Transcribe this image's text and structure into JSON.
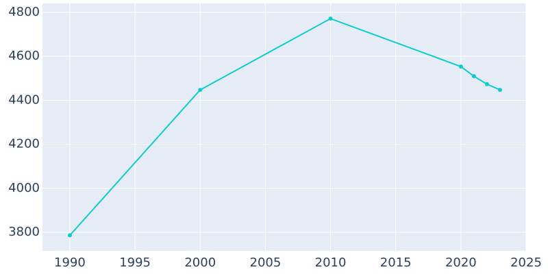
{
  "chart_data": {
    "type": "line",
    "x": [
      1990,
      2000,
      2010,
      2020,
      2021,
      2022,
      2023
    ],
    "series": [
      {
        "color": "#0fcccc",
        "values": [
          3786,
          4447,
          4771,
          4553,
          4509,
          4473,
          4447
        ]
      }
    ],
    "xlim": [
      1987.9,
      2025
    ],
    "xticks": [
      1990,
      1995,
      2000,
      2005,
      2010,
      2015,
      2020,
      2025
    ],
    "ylim": [
      3716,
      4840
    ],
    "yticks": [
      3800,
      4000,
      4200,
      4400,
      4600,
      4800
    ],
    "grid": true
  }
}
